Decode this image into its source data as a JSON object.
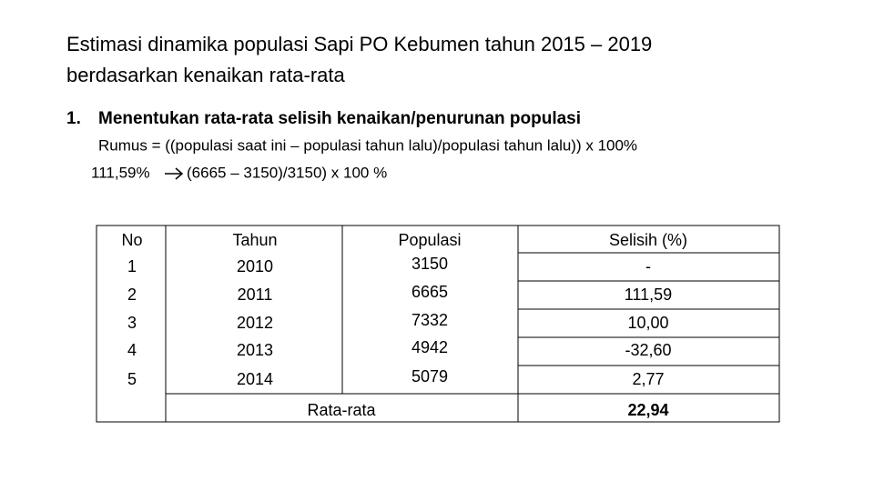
{
  "header": {
    "title_lines": [
      "Estimasi dinamika populasi Sapi PO Kebumen tahun 2015 – 2019",
      "berdasarkan kenaikan rata-rata"
    ]
  },
  "section": {
    "number": "1.",
    "heading": "Menentukan rata-rata selisih kenaikan/penurunan populasi",
    "formula": "Rumus = ((populasi saat ini – populasi tahun lalu)/populasi tahun lalu)) x 100%",
    "example": {
      "result": "111,59%",
      "expression": "(6665 – 3150)/3150) x 100 %"
    }
  },
  "table": {
    "columns": [
      "No",
      "Tahun",
      "Populasi",
      "Selisih (%)"
    ],
    "rows": [
      [
        "1",
        "2010",
        "3150",
        "-"
      ],
      [
        "2",
        "2011",
        "6665",
        "111,59"
      ],
      [
        "3",
        "2012",
        "7332",
        "10,00"
      ],
      [
        "4",
        "2013",
        "4942",
        "-32,60"
      ],
      [
        "5",
        "2014",
        "5079",
        "2,77"
      ]
    ],
    "average": {
      "label": "Rata-rata",
      "value": "22,94"
    }
  }
}
